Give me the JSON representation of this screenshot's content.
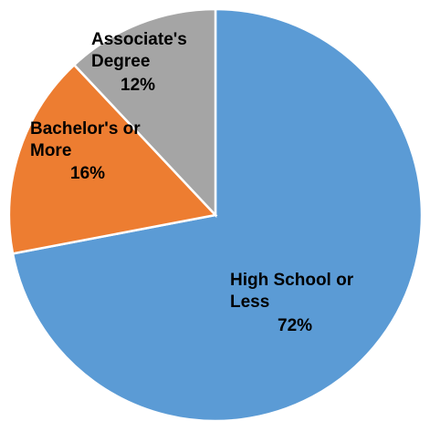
{
  "chart_data": {
    "type": "pie",
    "start": "12 o'clock",
    "direction": "clockwise",
    "slices": [
      {
        "label": "High School or Less",
        "value": 72,
        "value_label": "72%",
        "color": "#5b9bd5"
      },
      {
        "label": "Bachelor's or More",
        "value": 16,
        "value_label": "16%",
        "color": "#ed7d31"
      },
      {
        "label": "Associate's Degree",
        "value": 12,
        "value_label": "12%",
        "color": "#a5a5a5"
      }
    ]
  }
}
